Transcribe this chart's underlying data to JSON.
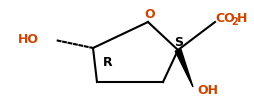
{
  "bg_color": "#ffffff",
  "ring_color": "#000000",
  "text_color": "#000000",
  "label_O": "O",
  "label_S": "S",
  "label_R": "R",
  "label_HO_left": "HO",
  "label_CO": "CO",
  "label_2": "2",
  "label_H": "H",
  "label_OH_right": "OH",
  "color_orange": "#cc4400",
  "figsize": [
    2.55,
    1.11
  ],
  "dpi": 100
}
